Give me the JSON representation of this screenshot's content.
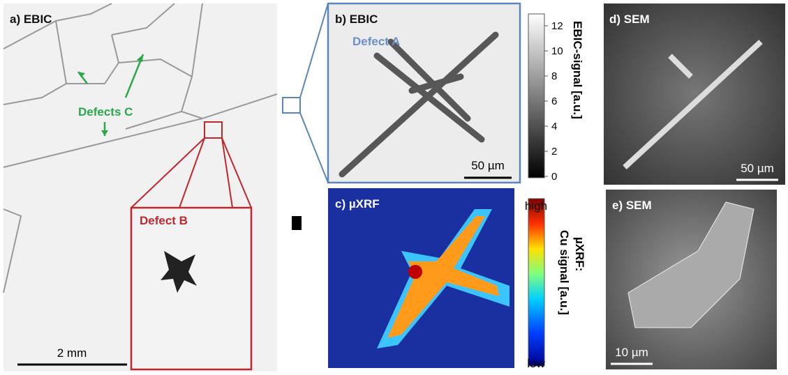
{
  "panels": {
    "a": {
      "title": "a) EBIC",
      "defects_c": "Defects C",
      "defect_b": "Defect B",
      "scale": "2 mm"
    },
    "b": {
      "title": "b) EBIC",
      "defect_a": "Defect A",
      "scale": "50 µm",
      "colorbar": {
        "label": "EBIC-signal [a.u.]",
        "ticks": [
          0,
          2,
          4,
          6,
          8,
          10,
          12
        ]
      }
    },
    "c": {
      "title": "c) µXRF",
      "colorbar": {
        "label_1": "µXRF:",
        "label_2": "Cu signal [a.u.]",
        "high": "high",
        "low": "low"
      }
    },
    "d": {
      "title": "d) SEM",
      "scale": "50 µm"
    },
    "e": {
      "title": "e) SEM",
      "scale": "10 µm"
    }
  }
}
